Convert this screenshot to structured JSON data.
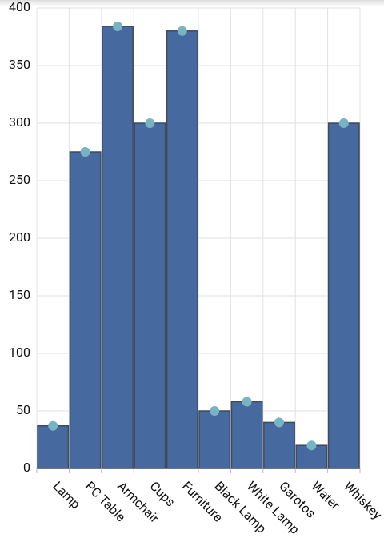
{
  "chart_data": {
    "type": "bar",
    "categories": [
      "Lamp",
      "PC Table",
      "Armchair",
      "Cups",
      "Furniture",
      "Black Lamp",
      "White Lamp",
      "Garotos",
      "Water",
      "Whiskey"
    ],
    "values": [
      37,
      275,
      384,
      300,
      380,
      50,
      58,
      40,
      20,
      300
    ],
    "color": "#466a9f",
    "marker_color": "#77b3c2",
    "ylim": [
      0,
      400
    ],
    "yticks": [
      0,
      50,
      100,
      150,
      200,
      250,
      300,
      350,
      400
    ],
    "grid": true
  }
}
